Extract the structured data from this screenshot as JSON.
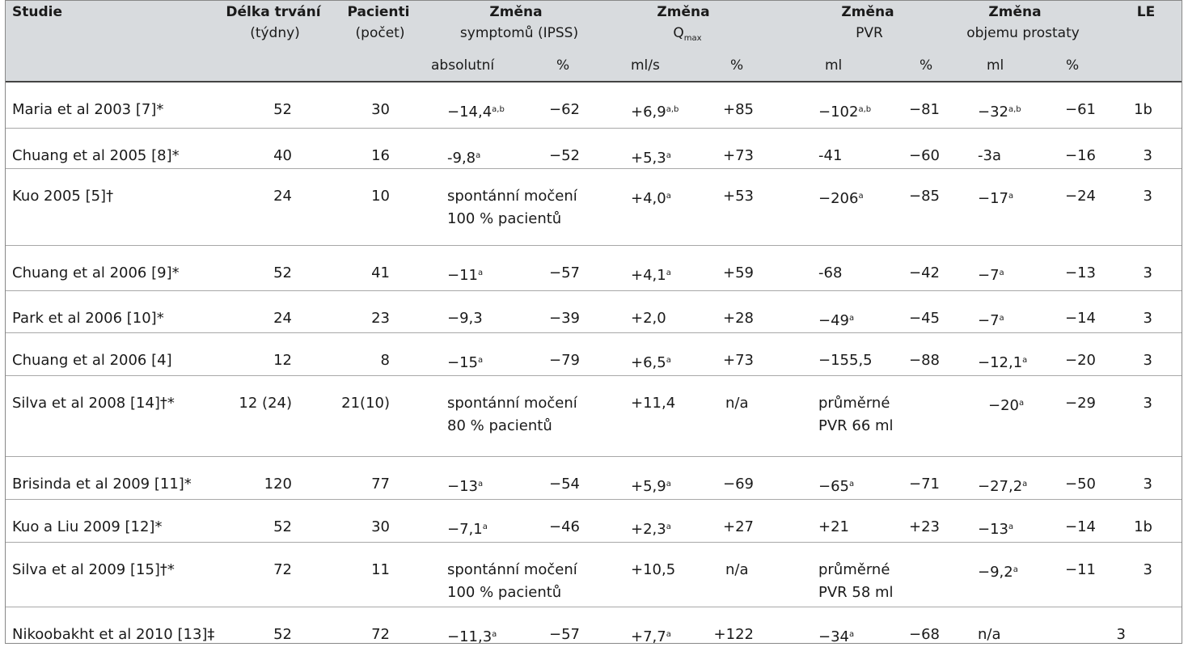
{
  "headers": {
    "studie": "Studie",
    "delka_1": "Délka trvání",
    "delka_2": "(týdny)",
    "pacienti_1": "Pacienti",
    "pacienti_2": "(počet)",
    "ipss_1": "Změna",
    "ipss_2": "symptomů (IPSS)",
    "ipss_abs": "absolutní",
    "ipss_pct": "%",
    "qmax_1": "Změna",
    "qmax_q": "Q",
    "qmax_sub": "max",
    "qmax_unit": "ml/s",
    "qmax_pct": "%",
    "pvr_1": "Změna",
    "pvr_2": "PVR",
    "pvr_unit": "ml",
    "pvr_pct": "%",
    "prost_1": "Změna",
    "prost_2": "objemu  prostaty",
    "prost_unit": "ml",
    "prost_pct": "%",
    "le": "LE"
  },
  "rows": [
    {
      "study": "Maria et al 2003 [7]*",
      "weeks": "52",
      "patients": "30",
      "ipss_abs": "−14,4",
      "ipss_abs_sup": "a,b",
      "ipss_pct": "−62",
      "ipss_note1": "",
      "ipss_note2": "",
      "qmax": "+6,9",
      "qmax_sup": "a,b",
      "qmax_pct": "+85",
      "pvr": "−102",
      "pvr_sup": "a,b",
      "pvr_pct": "−81",
      "pvr_note1": "",
      "pvr_note2": "",
      "prost": "−32",
      "prost_sup": "a,b",
      "prost_pct": "−61",
      "le": "1b"
    },
    {
      "study": "Chuang et al 2005 [8]*",
      "weeks": "40",
      "patients": "16",
      "ipss_abs": "-9,8",
      "ipss_abs_sup": "a",
      "ipss_pct": "−52",
      "ipss_note1": "",
      "ipss_note2": "",
      "qmax": "+5,3",
      "qmax_sup": "a",
      "qmax_pct": "+73",
      "pvr": "-41",
      "pvr_sup": "",
      "pvr_pct": "−60",
      "pvr_note1": "",
      "pvr_note2": "",
      "prost": "-3a",
      "prost_sup": "",
      "prost_pct": "−16",
      "le": "3"
    },
    {
      "study": "Kuo 2005 [5]†",
      "weeks": "24",
      "patients": "10",
      "ipss_abs": "",
      "ipss_abs_sup": "",
      "ipss_pct": "",
      "ipss_note1": "spontánní močení",
      "ipss_note2": "100 % pacientů",
      "qmax": "+4,0",
      "qmax_sup": "a",
      "qmax_pct": "+53",
      "pvr": "−206",
      "pvr_sup": "a",
      "pvr_pct": "−85",
      "pvr_note1": "",
      "pvr_note2": "",
      "prost": "−17",
      "prost_sup": "a",
      "prost_pct": "−24",
      "le": "3"
    },
    {
      "study": "Chuang et al 2006 [9]*",
      "weeks": "52",
      "patients": "41",
      "ipss_abs": "−11",
      "ipss_abs_sup": "a",
      "ipss_pct": "−57",
      "ipss_note1": "",
      "ipss_note2": "",
      "qmax": "+4,1",
      "qmax_sup": "a",
      "qmax_pct": "+59",
      "pvr": "-68",
      "pvr_sup": "",
      "pvr_pct": "−42",
      "pvr_note1": "",
      "pvr_note2": "",
      "prost": "−7",
      "prost_sup": "a",
      "prost_pct": "−13",
      "le": "3"
    },
    {
      "study": "Park et al 2006 [10]*",
      "weeks": "24",
      "patients": "23",
      "ipss_abs": "−9,3",
      "ipss_abs_sup": "",
      "ipss_pct": "−39",
      "ipss_note1": "",
      "ipss_note2": "",
      "qmax": "+2,0",
      "qmax_sup": "",
      "qmax_pct": "+28",
      "pvr": "−49",
      "pvr_sup": "a",
      "pvr_pct": "−45",
      "pvr_note1": "",
      "pvr_note2": "",
      "prost": "−7",
      "prost_sup": "a",
      "prost_pct": "−14",
      "le": "3"
    },
    {
      "study": "Chuang et al 2006 [4]",
      "weeks": "12",
      "patients": "8",
      "ipss_abs": "−15",
      "ipss_abs_sup": "a",
      "ipss_pct": "−79",
      "ipss_note1": "",
      "ipss_note2": "",
      "qmax": "+6,5",
      "qmax_sup": "a",
      "qmax_pct": "+73",
      "pvr": "−155,5",
      "pvr_sup": "",
      "pvr_pct": "−88",
      "pvr_note1": "",
      "pvr_note2": "",
      "prost": "−12,1",
      "prost_sup": "a",
      "prost_pct": "−20",
      "le": "3"
    },
    {
      "study": "Silva et al 2008 [14]†*",
      "weeks": "12 (24)",
      "patients": "21(10)",
      "ipss_abs": "",
      "ipss_abs_sup": "",
      "ipss_pct": "",
      "ipss_note1": "spontánní močení",
      "ipss_note2": "80 % pacientů",
      "qmax": "+11,4",
      "qmax_sup": "",
      "qmax_pct": "n/a",
      "pvr": "",
      "pvr_sup": "",
      "pvr_pct": "",
      "pvr_note1": "průměrné",
      "pvr_note2": "PVR 66 ml",
      "prost": "−20",
      "prost_sup": "a",
      "prost_pct": "−29",
      "le": "3"
    },
    {
      "study": "Brisinda et al 2009 [11]*",
      "weeks": "120",
      "patients": "77",
      "ipss_abs": "−13",
      "ipss_abs_sup": "a",
      "ipss_pct": "−54",
      "ipss_note1": "",
      "ipss_note2": "",
      "qmax": "+5,9",
      "qmax_sup": "a",
      "qmax_pct": "−69",
      "pvr": "−65",
      "pvr_sup": "a",
      "pvr_pct": "−71",
      "pvr_note1": "",
      "pvr_note2": "",
      "prost": "−27,2",
      "prost_sup": "a",
      "prost_pct": "−50",
      "le": "3"
    },
    {
      "study": "Kuo a Liu 2009 [12]*",
      "weeks": "52",
      "patients": "30",
      "ipss_abs": "−7,1",
      "ipss_abs_sup": "a",
      "ipss_pct": "−46",
      "ipss_note1": "",
      "ipss_note2": "",
      "qmax": "+2,3",
      "qmax_sup": "a",
      "qmax_pct": "+27",
      "pvr": "+21",
      "pvr_sup": "",
      "pvr_pct": "+23",
      "pvr_note1": "",
      "pvr_note2": "",
      "prost": "−13",
      "prost_sup": "a",
      "prost_pct": "−14",
      "le": "1b"
    },
    {
      "study": "Silva et al 2009 [15]†*",
      "weeks": "72",
      "patients": "11",
      "ipss_abs": "",
      "ipss_abs_sup": "",
      "ipss_pct": "",
      "ipss_note1": "spontánní močení",
      "ipss_note2": "100 % pacientů",
      "qmax": "+10,5",
      "qmax_sup": "",
      "qmax_pct": "n/a",
      "pvr": "",
      "pvr_sup": "",
      "pvr_pct": "",
      "pvr_note1": "průměrné",
      "pvr_note2": "PVR 58 ml",
      "prost": "−9,2",
      "prost_sup": "a",
      "prost_pct": "−11",
      "le": "3"
    },
    {
      "study": "Nikoobakht et al 2010 [13]‡",
      "weeks": "52",
      "patients": "72",
      "ipss_abs": "−11,3",
      "ipss_abs_sup": "a",
      "ipss_pct": "−57",
      "ipss_note1": "",
      "ipss_note2": "",
      "qmax": "+7,7",
      "qmax_sup": "a",
      "qmax_pct": "+122",
      "pvr": "−34",
      "pvr_sup": "a",
      "pvr_pct": "−68",
      "pvr_note1": "",
      "pvr_note2": "",
      "prost": "n/a",
      "prost_sup": "",
      "prost_pct": "",
      "le": "3"
    }
  ]
}
